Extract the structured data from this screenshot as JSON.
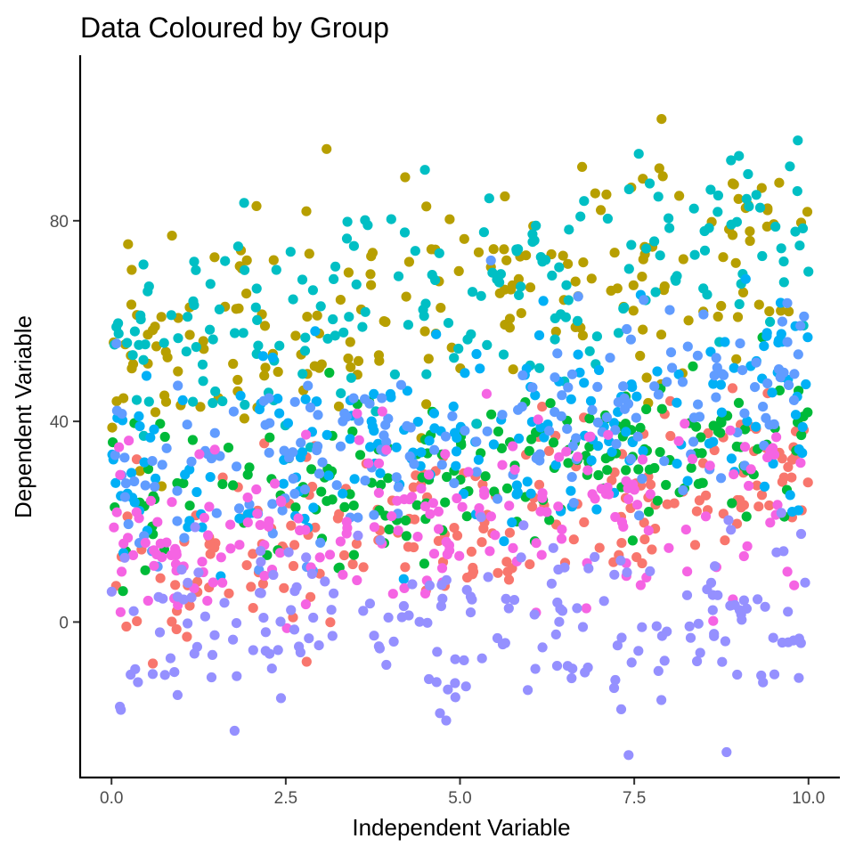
{
  "chart_data": {
    "type": "scatter",
    "title": "Data Coloured by Group",
    "xlabel": "Independent Variable",
    "ylabel": "Dependent Variable",
    "xlim": [
      -0.45,
      10.45
    ],
    "ylim": [
      -31,
      113
    ],
    "x_ticks": [
      0,
      2.5,
      5,
      7.5,
      10
    ],
    "x_tick_labels": [
      "0.0",
      "2.5",
      "5.0",
      "7.5",
      "10.0"
    ],
    "y_ticks": [
      0,
      40,
      80
    ],
    "y_tick_labels": [
      "0",
      "40",
      "80"
    ],
    "grid": false,
    "legend": "none",
    "point_count_per_group": 200,
    "groups": [
      {
        "color": "#F8766D",
        "intercept": 10,
        "slope": 2.0,
        "spread": 9
      },
      {
        "color": "#B79F00",
        "intercept": 53,
        "slope": 2.3,
        "spread": 11
      },
      {
        "color": "#00BA38",
        "intercept": 22,
        "slope": 1.4,
        "spread": 8
      },
      {
        "color": "#00BFC4",
        "intercept": 53,
        "slope": 2.6,
        "spread": 11
      },
      {
        "color": "#00B0F6",
        "intercept": 28,
        "slope": 1.7,
        "spread": 10
      },
      {
        "color": "#619CFF",
        "intercept": 28,
        "slope": 1.7,
        "spread": 10
      },
      {
        "color": "#F564E3",
        "intercept": 16,
        "slope": 1.0,
        "spread": 9
      },
      {
        "color": "#9590FF",
        "intercept": -3,
        "slope": 0.6,
        "spread": 9
      }
    ]
  }
}
